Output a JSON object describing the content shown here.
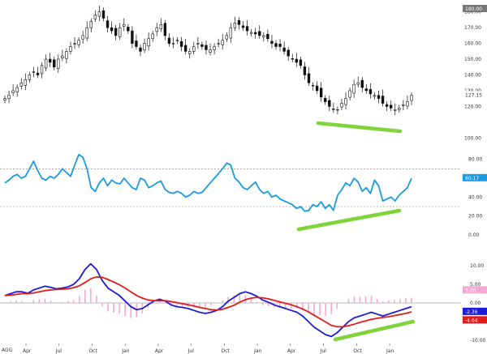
{
  "symbol_label": "AGG",
  "colors": {
    "candle": "#111111",
    "rsi": "#1a9ae0",
    "macd": "#1c1cd8",
    "signal": "#e01c1c",
    "hist": "#f4a8d4",
    "divergence": "#7fd43c",
    "grid": "#777777",
    "price_badge": "#777777",
    "rsi_badge": "#1a9ae0",
    "macd_badge": "#1c1cd8",
    "signal_badge": "#e01c1c",
    "hist_badge": "#f4a8d4"
  },
  "x_axis_labels": [
    "Apr",
    "Jul",
    "Oct",
    "Jan",
    "Apr",
    "Jul",
    "Oct",
    "Jan",
    "Apr",
    "Jul",
    "Oct",
    "Jan"
  ],
  "chart_data": [
    {
      "type": "candlestick",
      "panel": "price",
      "ylim": [
        95,
        185
      ],
      "yticks": [
        "100.00",
        "120.00",
        "130.00",
        "140.00",
        "150.00",
        "160.00",
        "170.00",
        "180.00"
      ],
      "last_price_label": "127.15",
      "top_label": "180.00",
      "close_series_weekly": [
        125,
        127,
        130,
        132,
        135,
        137,
        140,
        142,
        140,
        146,
        150,
        148,
        145,
        150,
        152,
        155,
        158,
        160,
        162,
        165,
        170,
        174,
        178,
        180,
        176,
        170,
        168,
        165,
        170,
        172,
        168,
        160,
        158,
        155,
        160,
        163,
        166,
        170,
        172,
        165,
        160,
        160,
        162,
        158,
        155,
        155,
        158,
        160,
        158,
        156,
        156,
        158,
        160,
        162,
        165,
        170,
        173,
        172,
        170,
        168,
        167,
        166,
        165,
        165,
        163,
        160,
        158,
        158,
        155,
        152,
        150,
        148,
        146,
        140,
        135,
        133,
        130,
        126,
        123,
        120,
        118,
        118,
        122,
        125,
        130,
        134,
        135,
        132,
        130,
        128,
        127,
        125,
        122,
        120,
        119,
        118,
        119,
        121,
        123,
        127
      ]
    },
    {
      "type": "line",
      "panel": "rsi",
      "ylim": [
        0,
        90
      ],
      "yticks": [
        "0.00",
        "20.00",
        "40.00",
        "60.00",
        "80.00"
      ],
      "reference_lines": [
        70,
        30
      ],
      "last_value_label": "60.17",
      "values": [
        55,
        58,
        62,
        64,
        60,
        62,
        70,
        78,
        68,
        60,
        58,
        62,
        60,
        64,
        70,
        66,
        62,
        74,
        85,
        82,
        70,
        50,
        46,
        55,
        60,
        52,
        58,
        55,
        54,
        60,
        55,
        50,
        48,
        60,
        58,
        50,
        52,
        55,
        57,
        48,
        45,
        44,
        46,
        44,
        40,
        42,
        46,
        44,
        45,
        50,
        55,
        60,
        65,
        70,
        76,
        74,
        60,
        56,
        50,
        48,
        52,
        56,
        48,
        44,
        46,
        40,
        42,
        38,
        36,
        34,
        32,
        28,
        30,
        25,
        26,
        32,
        30,
        35,
        28,
        32,
        26,
        42,
        48,
        55,
        52,
        60,
        56,
        46,
        50,
        44,
        58,
        52,
        36,
        38,
        40,
        36,
        42,
        46,
        50,
        60
      ]
    },
    {
      "type": "line",
      "panel": "macd",
      "ylim": [
        -10,
        15
      ],
      "yticks": [
        "-10.00",
        "-5.00",
        "0.00",
        "5.00",
        "10.00"
      ],
      "series": [
        {
          "name": "",
          "values": [
            2.0,
            2.5,
            3.0,
            3.0,
            2.6,
            3.5,
            4.0,
            4.5,
            4.2,
            3.8,
            4.0,
            4.3,
            5.0,
            6.5,
            9.0,
            10.5,
            9.0,
            6.0,
            4.0,
            3.0,
            2.0,
            0.5,
            -1.0,
            -1.8,
            -1.5,
            -0.5,
            0.5,
            1.0,
            0.5,
            -0.5,
            -1.0,
            -1.2,
            -1.5,
            -2.0,
            -2.5,
            -2.8,
            -2.5,
            -2.0,
            -1.0,
            0.5,
            1.5,
            2.5,
            3.0,
            2.5,
            1.8,
            0.8,
            0.2,
            -0.5,
            -1.0,
            -1.5,
            -2.0,
            -2.5,
            -3.5,
            -5.0,
            -6.5,
            -7.5,
            -8.5,
            -9.0,
            -8.0,
            -6.5,
            -5.0,
            -4.0,
            -3.5,
            -3.0,
            -2.5,
            -3.0,
            -3.5,
            -3.0,
            -2.5,
            -2.0,
            -1.5,
            -1.0
          ]
        },
        {
          "name": "",
          "values": [
            2.0,
            2.1,
            2.3,
            2.5,
            2.5,
            2.7,
            3.0,
            3.3,
            3.5,
            3.6,
            3.7,
            3.8,
            4.1,
            4.6,
            5.5,
            6.5,
            7.0,
            6.9,
            6.3,
            5.6,
            4.9,
            4.0,
            3.0,
            2.0,
            1.3,
            0.8,
            0.6,
            0.6,
            0.6,
            0.4,
            0.1,
            -0.2,
            -0.5,
            -0.8,
            -1.2,
            -1.5,
            -1.8,
            -1.9,
            -1.7,
            -1.2,
            -0.6,
            0.2,
            0.9,
            1.3,
            1.5,
            1.4,
            1.1,
            0.7,
            0.3,
            -0.1,
            -0.5,
            -1.0,
            -1.6,
            -2.4,
            -3.3,
            -4.2,
            -5.1,
            -6.0,
            -6.4,
            -6.4,
            -6.1,
            -5.7,
            -5.2,
            -4.8,
            -4.4,
            -4.1,
            -3.9,
            -3.7,
            -3.4,
            -3.1,
            -2.8,
            -2.4
          ]
        }
      ],
      "histogram": [
        0.2,
        0.4,
        0.7,
        0.5,
        0.1,
        0.8,
        1.0,
        1.2,
        0.7,
        0.2,
        0.3,
        0.5,
        0.9,
        1.9,
        3.5,
        4.0,
        2.0,
        -0.9,
        -2.3,
        -2.6,
        -2.9,
        -3.5,
        -4.0,
        -3.8,
        -2.8,
        -1.3,
        -0.1,
        0.4,
        -0.1,
        -0.9,
        -1.1,
        -1.0,
        -1.0,
        -1.2,
        -1.3,
        -1.3,
        -0.7,
        -0.1,
        0.7,
        1.7,
        2.1,
        2.3,
        2.1,
        1.2,
        0.3,
        -0.6,
        -0.9,
        -1.2,
        -1.3,
        -1.4,
        -1.5,
        -1.5,
        -1.9,
        -2.6,
        -3.2,
        -3.3,
        -3.4,
        -3.0,
        -1.6,
        -0.1,
        1.1,
        1.7,
        1.7,
        1.8,
        1.9,
        1.1,
        0.4,
        0.7,
        0.9,
        1.1,
        1.3,
        1.4
      ],
      "last_value_labels": [
        "3.40",
        "-2.36",
        "-4.64"
      ]
    }
  ]
}
